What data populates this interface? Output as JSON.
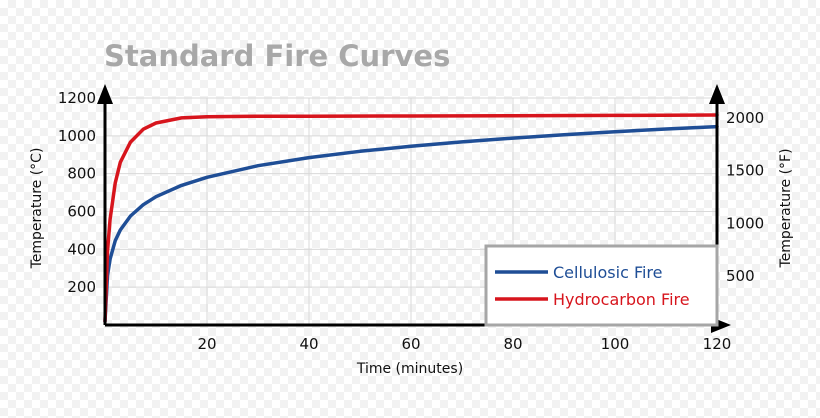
{
  "chart_data": {
    "type": "line",
    "title": "Standard Fire Curves",
    "xlabel": "Time (minutes)",
    "ylabel": "Temperature (°C)",
    "y2label": "Temperature (°F)",
    "xlim": [
      0,
      120
    ],
    "ylim": [
      0,
      1200
    ],
    "x_ticks": [
      20,
      40,
      60,
      80,
      100,
      120
    ],
    "y_ticks": [
      200,
      400,
      600,
      800,
      1000,
      1200
    ],
    "y2_ticks": [
      500,
      1000,
      1500,
      2000
    ],
    "grid": true,
    "legend_position": "bottom-right",
    "series": [
      {
        "name": "Cellulosic Fire",
        "color": "#1f4e96",
        "x": [
          0,
          0.5,
          1,
          2,
          3,
          5,
          7.5,
          10,
          15,
          20,
          30,
          40,
          50,
          60,
          70,
          80,
          90,
          100,
          110,
          120
        ],
        "y": [
          20,
          261,
          349,
          445,
          502,
          576,
          636,
          678,
          738,
          781,
          842,
          885,
          918,
          945,
          968,
          988,
          1006,
          1022,
          1036,
          1049
        ]
      },
      {
        "name": "Hydrocarbon Fire",
        "color": "#d7151d",
        "x": [
          0,
          0.5,
          1,
          2,
          3,
          5,
          7.5,
          10,
          15,
          20,
          30,
          40,
          60,
          80,
          100,
          120
        ],
        "y": [
          20,
          390,
          560,
          750,
          860,
          967,
          1035,
          1068,
          1095,
          1101,
          1104,
          1104,
          1105,
          1106,
          1108,
          1110
        ]
      }
    ]
  }
}
